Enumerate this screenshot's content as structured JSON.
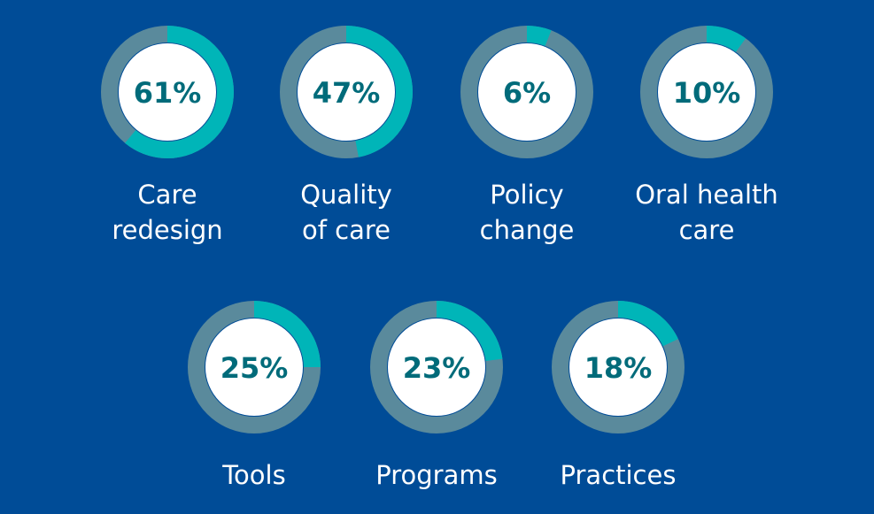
{
  "chart_data": {
    "type": "pie",
    "categories": [
      "Care redesign",
      "Quality of care",
      "Policy change",
      "Oral health care",
      "Tools",
      "Programs",
      "Practices"
    ],
    "values": [
      61,
      47,
      6,
      10,
      25,
      23,
      18
    ],
    "value_labels": [
      "61%",
      "47%",
      "6%",
      "10%",
      "25%",
      "23%",
      "18%"
    ],
    "label_lines": [
      [
        "Care",
        "redesign"
      ],
      [
        "Quality",
        "of care"
      ],
      [
        "Policy",
        "change"
      ],
      [
        "Oral health",
        "care"
      ],
      [
        "Tools"
      ],
      [
        "Programs"
      ],
      [
        "Practices"
      ]
    ],
    "title": "",
    "xlabel": "",
    "ylabel": "",
    "grid": false,
    "colors": {
      "background": "#004c97",
      "filled": "#00b5b8",
      "remaining": "#5a8a9c",
      "center": "#ffffff",
      "value_text": "#006b7a",
      "label_text": "#ffffff"
    }
  }
}
